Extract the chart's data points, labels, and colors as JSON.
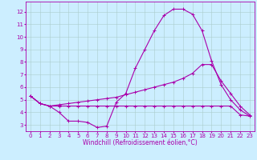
{
  "xlabel": "Windchill (Refroidissement éolien,°C)",
  "background_color": "#cceeff",
  "grid_color": "#aacccc",
  "line_color": "#aa00aa",
  "spine_color": "#aa00aa",
  "xlim": [
    -0.5,
    23.5
  ],
  "ylim": [
    2.5,
    12.8
  ],
  "xticks": [
    0,
    1,
    2,
    3,
    4,
    5,
    6,
    7,
    8,
    9,
    10,
    11,
    12,
    13,
    14,
    15,
    16,
    17,
    18,
    19,
    20,
    21,
    22,
    23
  ],
  "yticks": [
    3,
    4,
    5,
    6,
    7,
    8,
    9,
    10,
    11,
    12
  ],
  "line1_x": [
    0,
    1,
    2,
    3,
    4,
    5,
    6,
    7,
    8,
    9,
    10,
    11,
    12,
    13,
    14,
    15,
    16,
    17,
    18,
    19,
    20,
    21,
    22,
    23
  ],
  "line1_y": [
    5.3,
    4.7,
    4.5,
    4.0,
    3.3,
    3.3,
    3.2,
    2.8,
    2.9,
    4.8,
    5.5,
    7.5,
    9.0,
    10.5,
    11.7,
    12.2,
    12.2,
    11.8,
    10.5,
    8.1,
    6.2,
    5.0,
    4.2,
    3.7
  ],
  "line2_x": [
    0,
    1,
    2,
    3,
    4,
    5,
    6,
    7,
    8,
    9,
    10,
    11,
    12,
    13,
    14,
    15,
    16,
    17,
    18,
    19,
    20,
    21,
    22,
    23
  ],
  "line2_y": [
    5.3,
    4.7,
    4.5,
    4.6,
    4.7,
    4.8,
    4.9,
    5.0,
    5.1,
    5.2,
    5.4,
    5.6,
    5.8,
    6.0,
    6.2,
    6.4,
    6.7,
    7.1,
    7.8,
    7.8,
    6.5,
    5.5,
    4.5,
    3.8
  ],
  "line3_x": [
    0,
    1,
    2,
    3,
    4,
    5,
    6,
    7,
    8,
    9,
    10,
    11,
    12,
    13,
    14,
    15,
    16,
    17,
    18,
    19,
    20,
    21,
    22,
    23
  ],
  "line3_y": [
    5.3,
    4.7,
    4.5,
    4.5,
    4.5,
    4.5,
    4.5,
    4.5,
    4.5,
    4.5,
    4.5,
    4.5,
    4.5,
    4.5,
    4.5,
    4.5,
    4.5,
    4.5,
    4.5,
    4.5,
    4.5,
    4.5,
    3.8,
    3.7
  ],
  "xlabel_fontsize": 5.5,
  "tick_fontsize": 5,
  "linewidth": 0.8,
  "markersize": 2.5
}
